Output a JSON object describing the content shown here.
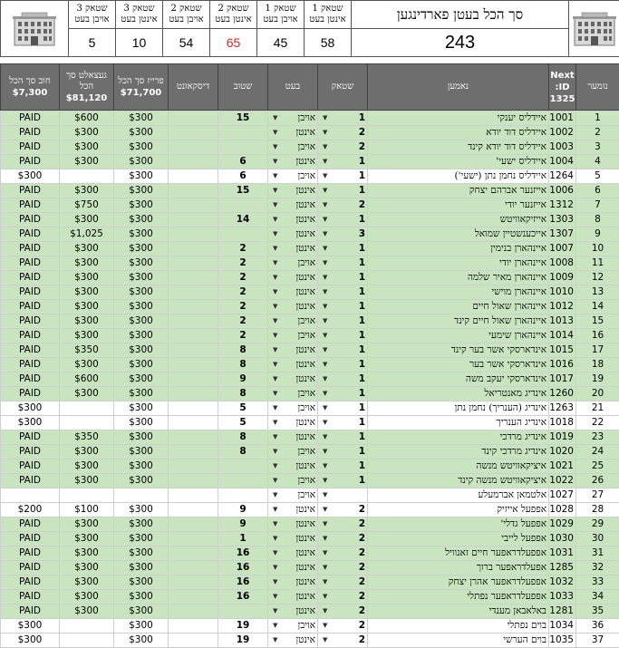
{
  "summary": {
    "title": "סך הכל בעטן פארדינגען",
    "total": "243",
    "cards": [
      {
        "label_top": "שטאק 1",
        "label_bottom": "אינטן בעט",
        "value": "58"
      },
      {
        "label_top": "שטאק 1",
        "label_bottom": "אויבן בעט",
        "value": "45"
      },
      {
        "label_top": "שטאק 2",
        "label_bottom": "אינטן בעט",
        "value": "65"
      },
      {
        "label_top": "שטאק 2",
        "label_bottom": "אויבן בעט",
        "value": "54"
      },
      {
        "label_top": "שטאק 3",
        "label_bottom": "אינטן בעט",
        "value": "10"
      },
      {
        "label_top": "שטאק 3",
        "label_bottom": "אויבן בעט",
        "value": "5"
      }
    ]
  },
  "columns": {
    "num": "נומער",
    "next_label": "Next ID:",
    "next_value": "1325",
    "name": "נאמען",
    "floor": "שטאק",
    "bed": "בעט",
    "room": "שטוב",
    "discount": "דיסקאונט",
    "price_label": "פרייז סך הכל",
    "price_total": "$71,700",
    "paid_label": "געצאלט סך הכל",
    "paid_total": "$81,120",
    "debt_label": "חוב סך הכל",
    "debt_total": "$7,300"
  },
  "colors": {
    "row_paid": "#c9e5c0",
    "row_open": "#ffffff",
    "header": "#6e6e6e",
    "highlight": "#e02020"
  },
  "rows": [
    {
      "num": "1",
      "id": "1001",
      "name": "איידליס יענקי",
      "floor": "1",
      "bed": "אויבן",
      "room": "15",
      "discount": "",
      "price": "$300",
      "paid": "$600",
      "debt": "PAID"
    },
    {
      "num": "2",
      "id": "1002",
      "name": "איידליס דוד יודא",
      "floor": "2",
      "bed": "אינטן",
      "room": "",
      "discount": "",
      "price": "$300",
      "paid": "$300",
      "debt": "PAID"
    },
    {
      "num": "3",
      "id": "1003",
      "name": "איידליס דוד יודא קינד",
      "floor": "2",
      "bed": "אויבן",
      "room": "",
      "discount": "",
      "price": "$300",
      "paid": "$300",
      "debt": "PAID"
    },
    {
      "num": "4",
      "id": "1004",
      "name": "איידליס ישעי'",
      "floor": "1",
      "bed": "אינטן",
      "room": "6",
      "discount": "",
      "price": "$300",
      "paid": "$300",
      "debt": "PAID"
    },
    {
      "num": "5",
      "id": "1264",
      "name": "איידליס נחמן נתן (ישעי')",
      "floor": "1",
      "bed": "אויבן",
      "room": "6",
      "discount": "",
      "price": "$300",
      "paid": "",
      "debt": "$300"
    },
    {
      "num": "6",
      "id": "1006",
      "name": "אייזנער אברהם יצחק",
      "floor": "1",
      "bed": "אינטן",
      "room": "15",
      "discount": "",
      "price": "$300",
      "paid": "$300",
      "debt": "PAID"
    },
    {
      "num": "7",
      "id": "1312",
      "name": "אייזנער יודי",
      "floor": "2",
      "bed": "אינטן",
      "room": "",
      "discount": "",
      "price": "$300",
      "paid": "$750",
      "debt": "PAID"
    },
    {
      "num": "8",
      "id": "1303",
      "name": "אייזיקאוויטש",
      "floor": "1",
      "bed": "אינטן",
      "room": "14",
      "discount": "",
      "price": "$300",
      "paid": "$300",
      "debt": "PAID"
    },
    {
      "num": "9",
      "id": "1307",
      "name": "אייכענשטיין שמואל",
      "floor": "3",
      "bed": "אינטן",
      "room": "",
      "discount": "",
      "price": "$300",
      "paid": "$1,025",
      "debt": "PAID"
    },
    {
      "num": "10",
      "id": "1007",
      "name": "איינהארן בנימין",
      "floor": "1",
      "bed": "אינטן",
      "room": "2",
      "discount": "",
      "price": "$300",
      "paid": "$300",
      "debt": "PAID"
    },
    {
      "num": "11",
      "id": "1008",
      "name": "איינהארן יודי",
      "floor": "1",
      "bed": "אויבן",
      "room": "2",
      "discount": "",
      "price": "$300",
      "paid": "$300",
      "debt": "PAID"
    },
    {
      "num": "12",
      "id": "1009",
      "name": "איינהארן מאיר שלמה",
      "floor": "1",
      "bed": "אינטן",
      "room": "2",
      "discount": "",
      "price": "$300",
      "paid": "$300",
      "debt": "PAID"
    },
    {
      "num": "13",
      "id": "1010",
      "name": "איינהארן מוישי",
      "floor": "1",
      "bed": "אינטן",
      "room": "2",
      "discount": "",
      "price": "$300",
      "paid": "$300",
      "debt": "PAID"
    },
    {
      "num": "14",
      "id": "1012",
      "name": "איינהארן שאול חיים",
      "floor": "1",
      "bed": "אינטן",
      "room": "2",
      "discount": "",
      "price": "$300",
      "paid": "$300",
      "debt": "PAID"
    },
    {
      "num": "15",
      "id": "1013",
      "name": "איינהארן שאול חיים קינד",
      "floor": "1",
      "bed": "אויבן",
      "room": "2",
      "discount": "",
      "price": "$300",
      "paid": "$300",
      "debt": "PAID"
    },
    {
      "num": "16",
      "id": "1014",
      "name": "איינהארן שימעי",
      "floor": "1",
      "bed": "אויבן",
      "room": "2",
      "discount": "",
      "price": "$300",
      "paid": "$300",
      "debt": "PAID"
    },
    {
      "num": "17",
      "id": "1015",
      "name": "אינדארסקי אשר בער קינד",
      "floor": "1",
      "bed": "אינטן",
      "room": "8",
      "discount": "",
      "price": "$300",
      "paid": "$350",
      "debt": "PAID"
    },
    {
      "num": "18",
      "id": "1016",
      "name": "אינדארסקי אשר בער",
      "floor": "1",
      "bed": "אינטן",
      "room": "8",
      "discount": "",
      "price": "$300",
      "paid": "$300",
      "debt": "PAID"
    },
    {
      "num": "19",
      "id": "1017",
      "name": "אינדארסקי יעקב משה",
      "floor": "1",
      "bed": "אינטן",
      "room": "9",
      "discount": "",
      "price": "$300",
      "paid": "$600",
      "debt": "PAID"
    },
    {
      "num": "20",
      "id": "1260",
      "name": "אינדיג מאנטריאל",
      "floor": "1",
      "bed": "אויבן",
      "room": "8",
      "discount": "",
      "price": "$300",
      "paid": "$300",
      "debt": "PAID"
    },
    {
      "num": "21",
      "id": "1263",
      "name": "אינדיג (הענריך) נחמן נתן",
      "floor": "1",
      "bed": "אויבן",
      "room": "5",
      "discount": "",
      "price": "$300",
      "paid": "",
      "debt": "$300"
    },
    {
      "num": "22",
      "id": "1018",
      "name": "אינדיג הענריך",
      "floor": "1",
      "bed": "אינטן",
      "room": "5",
      "discount": "",
      "price": "$300",
      "paid": "",
      "debt": "$300"
    },
    {
      "num": "23",
      "id": "1019",
      "name": "אינדיג מרדכי",
      "floor": "1",
      "bed": "אינטן",
      "room": "8",
      "discount": "",
      "price": "$300",
      "paid": "$350",
      "debt": "PAID"
    },
    {
      "num": "24",
      "id": "1020",
      "name": "אינדיג מרדכי קינד",
      "floor": "1",
      "bed": "אויבן",
      "room": "8",
      "discount": "",
      "price": "$300",
      "paid": "$300",
      "debt": "PAID"
    },
    {
      "num": "25",
      "id": "1021",
      "name": "איציקאוויטש מנשה",
      "floor": "1",
      "bed": "אינטן",
      "room": "",
      "discount": "",
      "price": "$300",
      "paid": "$300",
      "debt": "PAID"
    },
    {
      "num": "26",
      "id": "1022",
      "name": "איציקאוויטש מנשה קינד",
      "floor": "1",
      "bed": "אויבן",
      "room": "",
      "discount": "",
      "price": "$300",
      "paid": "$300",
      "debt": "PAID"
    },
    {
      "num": "27",
      "id": "1027",
      "name": "אלטמאן אברמעלע",
      "floor": "",
      "bed": "אויבן",
      "room": "",
      "discount": "",
      "price": "",
      "paid": "",
      "debt": ""
    },
    {
      "num": "28",
      "id": "1028",
      "name": "אפפעל אייזיק",
      "floor": "2",
      "bed": "אינטן",
      "room": "9",
      "discount": "",
      "price": "$300",
      "paid": "$100",
      "debt": "$200"
    },
    {
      "num": "29",
      "id": "1029",
      "name": "אפפעל גדלי'",
      "floor": "2",
      "bed": "אינטן",
      "room": "9",
      "discount": "",
      "price": "$300",
      "paid": "$300",
      "debt": "PAID"
    },
    {
      "num": "30",
      "id": "1030",
      "name": "אפפעל לייבי",
      "floor": "2",
      "bed": "אינטן",
      "room": "1",
      "discount": "",
      "price": "$300",
      "paid": "$300",
      "debt": "PAID"
    },
    {
      "num": "31",
      "id": "1031",
      "name": "אפפעלדראפער חיים זאנוויל",
      "floor": "2",
      "bed": "אינטן",
      "room": "16",
      "discount": "",
      "price": "$300",
      "paid": "$300",
      "debt": "PAID"
    },
    {
      "num": "32",
      "id": "1285",
      "name": "אפעלדראפער ברוך",
      "floor": "2",
      "bed": "אינטן",
      "room": "16",
      "discount": "",
      "price": "$300",
      "paid": "$300",
      "debt": "PAID"
    },
    {
      "num": "33",
      "id": "1032",
      "name": "אפפעלדראפער אהרן יצחק",
      "floor": "2",
      "bed": "אינטן",
      "room": "16",
      "discount": "",
      "price": "$300",
      "paid": "$300",
      "debt": "PAID"
    },
    {
      "num": "34",
      "id": "1033",
      "name": "אפפעלדראפער נפתלי",
      "floor": "2",
      "bed": "אינטן",
      "room": "16",
      "discount": "",
      "price": "$300",
      "paid": "$300",
      "debt": "PAID"
    },
    {
      "num": "35",
      "id": "1281",
      "name": "באלאבאן מענדי",
      "floor": "2",
      "bed": "אינטן",
      "room": "",
      "discount": "",
      "price": "$300",
      "paid": "$300",
      "debt": "PAID"
    },
    {
      "num": "36",
      "id": "1034",
      "name": "בוים נפתלי",
      "floor": "2",
      "bed": "אויבן",
      "room": "19",
      "discount": "",
      "price": "$300",
      "paid": "",
      "debt": "$300"
    },
    {
      "num": "37",
      "id": "1035",
      "name": "בוים הערשי",
      "floor": "2",
      "bed": "אינטן",
      "room": "19",
      "discount": "",
      "price": "$300",
      "paid": "",
      "debt": "$300"
    }
  ]
}
